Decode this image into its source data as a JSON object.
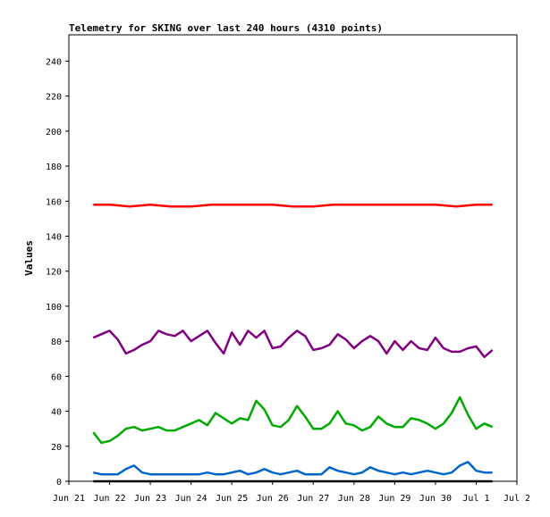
{
  "chart_data": {
    "type": "line",
    "title": "Telemetry for SKING over last 240 hours (4310 points)",
    "xlabel": "",
    "ylabel": "Values",
    "ylim": [
      0,
      255
    ],
    "yticks": [
      0,
      20,
      40,
      60,
      80,
      100,
      120,
      140,
      160,
      180,
      200,
      220,
      240
    ],
    "x_ticks": [
      "Jun 21",
      "Jun 22",
      "Jun 23",
      "Jun 24",
      "Jun 25",
      "Jun 26",
      "Jun 27",
      "Jun 28",
      "Jun 29",
      "Jun 30",
      "Jul 1",
      "Jul 2"
    ],
    "xlim_days": [
      0,
      11
    ],
    "grid": false,
    "legend": "none",
    "series": [
      {
        "color": "#ff0000",
        "x_days": [
          0.6,
          1.0,
          1.5,
          2.0,
          2.5,
          3.0,
          3.5,
          4.0,
          4.5,
          5.0,
          5.5,
          6.0,
          6.5,
          7.0,
          7.5,
          8.0,
          8.5,
          9.0,
          9.5,
          10.0,
          10.4
        ],
        "values": [
          158,
          158,
          157,
          158,
          157,
          157,
          158,
          158,
          158,
          158,
          157,
          157,
          158,
          158,
          158,
          158,
          158,
          158,
          157,
          158,
          158
        ]
      },
      {
        "color": "#800080",
        "x_days": [
          0.6,
          0.8,
          1.0,
          1.2,
          1.4,
          1.6,
          1.8,
          2.0,
          2.2,
          2.4,
          2.6,
          2.8,
          3.0,
          3.2,
          3.4,
          3.6,
          3.8,
          4.0,
          4.2,
          4.4,
          4.6,
          4.8,
          5.0,
          5.2,
          5.4,
          5.6,
          5.8,
          6.0,
          6.2,
          6.4,
          6.6,
          6.8,
          7.0,
          7.2,
          7.4,
          7.6,
          7.8,
          8.0,
          8.2,
          8.4,
          8.6,
          8.8,
          9.0,
          9.2,
          9.4,
          9.6,
          9.8,
          10.0,
          10.2,
          10.4
        ],
        "values": [
          82,
          84,
          86,
          81,
          73,
          75,
          78,
          80,
          86,
          84,
          83,
          86,
          80,
          83,
          86,
          79,
          73,
          85,
          78,
          86,
          82,
          86,
          76,
          77,
          82,
          86,
          83,
          75,
          76,
          78,
          84,
          81,
          76,
          80,
          83,
          80,
          73,
          80,
          75,
          80,
          76,
          75,
          82,
          76,
          74,
          74,
          76,
          77,
          71,
          75
        ]
      },
      {
        "color": "#00aa00",
        "x_days": [
          0.6,
          0.8,
          1.0,
          1.2,
          1.4,
          1.6,
          1.8,
          2.0,
          2.2,
          2.4,
          2.6,
          2.8,
          3.0,
          3.2,
          3.4,
          3.6,
          3.8,
          4.0,
          4.2,
          4.4,
          4.6,
          4.8,
          5.0,
          5.2,
          5.4,
          5.6,
          5.8,
          6.0,
          6.2,
          6.4,
          6.6,
          6.8,
          7.0,
          7.2,
          7.4,
          7.6,
          7.8,
          8.0,
          8.2,
          8.4,
          8.6,
          8.8,
          9.0,
          9.2,
          9.4,
          9.6,
          9.8,
          10.0,
          10.2,
          10.4
        ],
        "values": [
          28,
          22,
          23,
          26,
          30,
          31,
          29,
          30,
          31,
          29,
          29,
          31,
          33,
          35,
          32,
          39,
          36,
          33,
          36,
          35,
          46,
          41,
          32,
          31,
          35,
          43,
          37,
          30,
          30,
          33,
          40,
          33,
          32,
          29,
          31,
          37,
          33,
          31,
          31,
          36,
          35,
          33,
          30,
          33,
          39,
          48,
          38,
          30,
          33,
          31
        ]
      },
      {
        "color": "#0066cc",
        "x_days": [
          0.6,
          0.8,
          1.0,
          1.2,
          1.4,
          1.6,
          1.8,
          2.0,
          2.2,
          2.4,
          2.6,
          2.8,
          3.0,
          3.2,
          3.4,
          3.6,
          3.8,
          4.0,
          4.2,
          4.4,
          4.6,
          4.8,
          5.0,
          5.2,
          5.4,
          5.6,
          5.8,
          6.0,
          6.2,
          6.4,
          6.6,
          6.8,
          7.0,
          7.2,
          7.4,
          7.6,
          7.8,
          8.0,
          8.2,
          8.4,
          8.6,
          8.8,
          9.0,
          9.2,
          9.4,
          9.6,
          9.8,
          10.0,
          10.2,
          10.4
        ],
        "values": [
          5,
          4,
          4,
          4,
          7,
          9,
          5,
          4,
          4,
          4,
          4,
          4,
          4,
          4,
          5,
          4,
          4,
          5,
          6,
          4,
          5,
          7,
          5,
          4,
          5,
          6,
          4,
          4,
          4,
          8,
          6,
          5,
          4,
          5,
          8,
          6,
          5,
          4,
          5,
          4,
          5,
          6,
          5,
          4,
          5,
          9,
          11,
          6,
          5,
          5
        ]
      },
      {
        "color": "#000000",
        "x_days": [
          0.6,
          10.4
        ],
        "values": [
          0,
          0
        ]
      }
    ]
  }
}
